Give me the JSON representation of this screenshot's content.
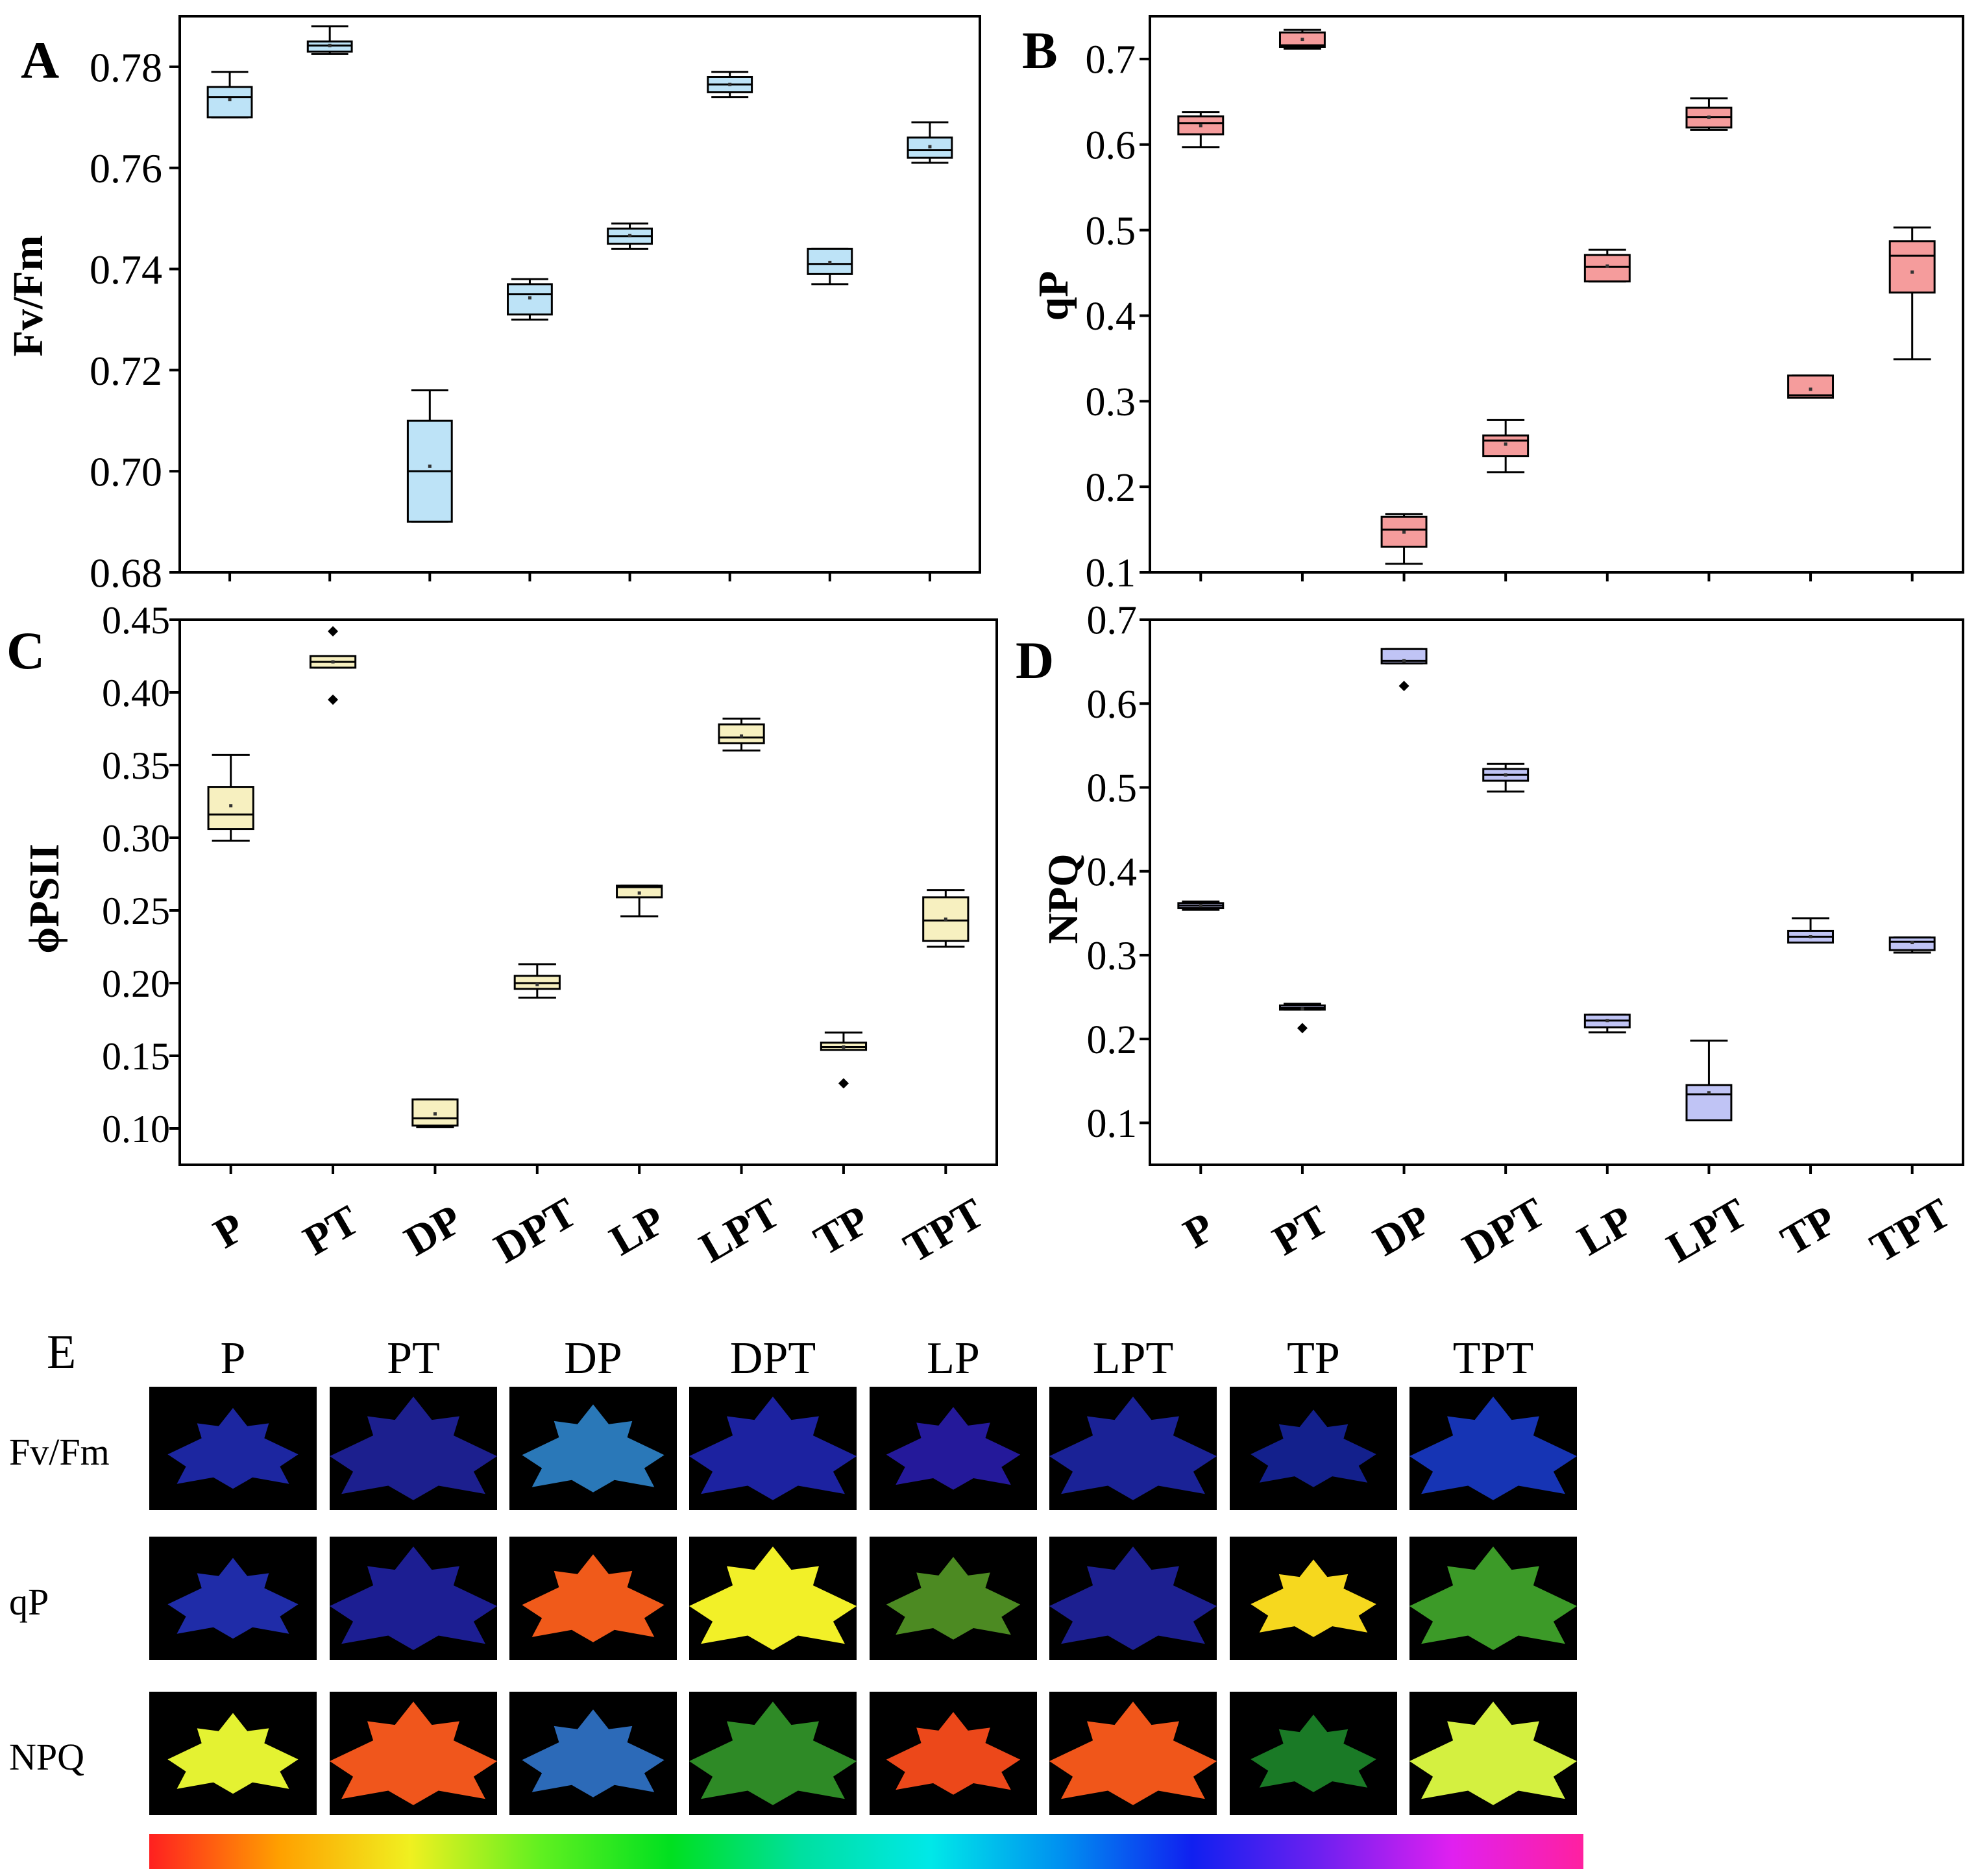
{
  "figure": {
    "categories": [
      "P",
      "PT",
      "DP",
      "DPT",
      "LP",
      "LPT",
      "TP",
      "TPT"
    ],
    "panel_e": {
      "letter": "E",
      "rows": [
        "Fv/Fm",
        "qP",
        "NPQ"
      ],
      "leaf_colors": [
        [
          "#1c26a0",
          "#1c1f8e",
          "#2a78b8",
          "#1c22a0",
          "#24199a",
          "#1a2296",
          "#13208c",
          "#1634b4"
        ],
        [
          "#1f2ca8",
          "#1c1e92",
          "#f05a1a",
          "#f2f028",
          "#4c8a22",
          "#1c1f90",
          "#f6d81e",
          "#3c9a28"
        ],
        [
          "#e4f232",
          "#f0561c",
          "#2c6ab8",
          "#2e8a26",
          "#ec481a",
          "#f0561a",
          "#1a7a26",
          "#d4f040"
        ]
      ],
      "colorbar": [
        "#ff2020",
        "#ffa000",
        "#f0f020",
        "#60f020",
        "#00e020",
        "#00e0a0",
        "#00e8e8",
        "#0090f0",
        "#1020f0",
        "#7020f0",
        "#e020f0",
        "#ff20a0"
      ]
    }
  },
  "chart_data": [
    {
      "panel": "A",
      "type": "box",
      "ylabel": "Fv/Fm",
      "ylim": [
        0.68,
        0.79
      ],
      "yticks": [
        "0.68",
        "0.70",
        "0.72",
        "0.74",
        "0.76",
        "0.78"
      ],
      "color": "#bde3f7",
      "categories": [
        "P",
        "PT",
        "DP",
        "DPT",
        "LP",
        "LPT",
        "TP",
        "TPT"
      ],
      "boxes": [
        {
          "min": 0.77,
          "q1": 0.77,
          "median": 0.774,
          "q3": 0.776,
          "max": 0.779,
          "mean": 0.7735,
          "outliers": []
        },
        {
          "min": 0.7825,
          "q1": 0.783,
          "median": 0.7842,
          "q3": 0.785,
          "max": 0.788,
          "mean": 0.7842,
          "outliers": []
        },
        {
          "min": 0.69,
          "q1": 0.69,
          "median": 0.7,
          "q3": 0.71,
          "max": 0.716,
          "mean": 0.701,
          "outliers": []
        },
        {
          "min": 0.73,
          "q1": 0.731,
          "median": 0.735,
          "q3": 0.737,
          "max": 0.738,
          "mean": 0.7343,
          "outliers": []
        },
        {
          "min": 0.744,
          "q1": 0.745,
          "median": 0.7465,
          "q3": 0.748,
          "max": 0.749,
          "mean": 0.7466,
          "outliers": []
        },
        {
          "min": 0.774,
          "q1": 0.775,
          "median": 0.7765,
          "q3": 0.778,
          "max": 0.779,
          "mean": 0.7765,
          "outliers": []
        },
        {
          "min": 0.737,
          "q1": 0.739,
          "median": 0.741,
          "q3": 0.744,
          "max": 0.744,
          "mean": 0.7413,
          "outliers": []
        },
        {
          "min": 0.761,
          "q1": 0.762,
          "median": 0.7635,
          "q3": 0.766,
          "max": 0.769,
          "mean": 0.7642,
          "outliers": []
        }
      ]
    },
    {
      "panel": "B",
      "type": "box",
      "ylabel": "qP",
      "ylim": [
        0.1,
        0.75
      ],
      "yticks": [
        "0.1",
        "0.2",
        "0.3",
        "0.4",
        "0.5",
        "0.6",
        "0.7"
      ],
      "color": "#f59c9c",
      "categories": [
        "P",
        "PT",
        "DP",
        "DPT",
        "LP",
        "LPT",
        "TP",
        "TPT"
      ],
      "boxes": [
        {
          "min": 0.597,
          "q1": 0.612,
          "median": 0.625,
          "q3": 0.633,
          "max": 0.638,
          "mean": 0.622,
          "outliers": []
        },
        {
          "min": 0.712,
          "q1": 0.714,
          "median": 0.716,
          "q3": 0.731,
          "max": 0.734,
          "mean": 0.723,
          "outliers": []
        },
        {
          "min": 0.11,
          "q1": 0.13,
          "median": 0.15,
          "q3": 0.165,
          "max": 0.168,
          "mean": 0.147,
          "outliers": []
        },
        {
          "min": 0.217,
          "q1": 0.236,
          "median": 0.254,
          "q3": 0.26,
          "max": 0.278,
          "mean": 0.25,
          "outliers": []
        },
        {
          "min": 0.44,
          "q1": 0.44,
          "median": 0.457,
          "q3": 0.471,
          "max": 0.477,
          "mean": 0.458,
          "outliers": []
        },
        {
          "min": 0.617,
          "q1": 0.62,
          "median": 0.632,
          "q3": 0.643,
          "max": 0.654,
          "mean": 0.632,
          "outliers": []
        },
        {
          "min": 0.304,
          "q1": 0.304,
          "median": 0.307,
          "q3": 0.33,
          "max": 0.33,
          "mean": 0.314,
          "outliers": []
        },
        {
          "min": 0.349,
          "q1": 0.427,
          "median": 0.47,
          "q3": 0.487,
          "max": 0.503,
          "mean": 0.451,
          "outliers": []
        }
      ]
    },
    {
      "panel": "C",
      "type": "box",
      "ylabel": "ϕPSII",
      "ylim": [
        0.075,
        0.45
      ],
      "yticks": [
        "0.10",
        "0.15",
        "0.20",
        "0.25",
        "0.30",
        "0.35",
        "0.40",
        "0.45"
      ],
      "color": "#f7f0c0",
      "categories": [
        "P",
        "PT",
        "DP",
        "DPT",
        "LP",
        "LPT",
        "TP",
        "TPT"
      ],
      "boxes": [
        {
          "min": 0.298,
          "q1": 0.306,
          "median": 0.316,
          "q3": 0.335,
          "max": 0.357,
          "mean": 0.322,
          "outliers": []
        },
        {
          "min": 0.417,
          "q1": 0.417,
          "median": 0.421,
          "q3": 0.425,
          "max": 0.425,
          "mean": 0.421,
          "outliers": [
            0.442,
            0.395
          ]
        },
        {
          "min": 0.101,
          "q1": 0.102,
          "median": 0.107,
          "q3": 0.12,
          "max": 0.12,
          "mean": 0.11,
          "outliers": []
        },
        {
          "min": 0.19,
          "q1": 0.196,
          "median": 0.2,
          "q3": 0.205,
          "max": 0.213,
          "mean": 0.199,
          "outliers": []
        },
        {
          "min": 0.246,
          "q1": 0.259,
          "median": 0.266,
          "q3": 0.267,
          "max": 0.267,
          "mean": 0.262,
          "outliers": []
        },
        {
          "min": 0.36,
          "q1": 0.365,
          "median": 0.369,
          "q3": 0.378,
          "max": 0.382,
          "mean": 0.37,
          "outliers": []
        },
        {
          "min": 0.154,
          "q1": 0.154,
          "median": 0.156,
          "q3": 0.159,
          "max": 0.166,
          "mean": 0.156,
          "outliers": [
            0.131
          ]
        },
        {
          "min": 0.225,
          "q1": 0.229,
          "median": 0.243,
          "q3": 0.259,
          "max": 0.264,
          "mean": 0.244,
          "outliers": []
        }
      ]
    },
    {
      "panel": "D",
      "type": "box",
      "ylabel": "NPQ",
      "ylim": [
        0.05,
        0.7
      ],
      "yticks": [
        "0.1",
        "0.2",
        "0.3",
        "0.4",
        "0.5",
        "0.6",
        "0.7"
      ],
      "color": "#c0c4f5",
      "categories": [
        "P",
        "PT",
        "DP",
        "DPT",
        "LP",
        "LPT",
        "TP",
        "TPT"
      ],
      "boxes": [
        {
          "min": 0.354,
          "q1": 0.356,
          "median": 0.359,
          "q3": 0.362,
          "max": 0.364,
          "mean": 0.359,
          "outliers": []
        },
        {
          "min": 0.235,
          "q1": 0.235,
          "median": 0.237,
          "q3": 0.24,
          "max": 0.242,
          "mean": 0.236,
          "outliers": [
            0.213
          ]
        },
        {
          "min": 0.648,
          "q1": 0.648,
          "median": 0.651,
          "q3": 0.665,
          "max": 0.665,
          "mean": 0.651,
          "outliers": [
            0.621
          ]
        },
        {
          "min": 0.495,
          "q1": 0.508,
          "median": 0.515,
          "q3": 0.522,
          "max": 0.528,
          "mean": 0.515,
          "outliers": []
        },
        {
          "min": 0.208,
          "q1": 0.214,
          "median": 0.222,
          "q3": 0.229,
          "max": 0.229,
          "mean": 0.222,
          "outliers": []
        },
        {
          "min": 0.103,
          "q1": 0.103,
          "median": 0.134,
          "q3": 0.145,
          "max": 0.198,
          "mean": 0.136,
          "outliers": []
        },
        {
          "min": 0.315,
          "q1": 0.315,
          "median": 0.322,
          "q3": 0.329,
          "max": 0.344,
          "mean": 0.322,
          "outliers": []
        },
        {
          "min": 0.303,
          "q1": 0.306,
          "median": 0.316,
          "q3": 0.321,
          "max": 0.321,
          "mean": 0.315,
          "outliers": []
        }
      ]
    }
  ]
}
